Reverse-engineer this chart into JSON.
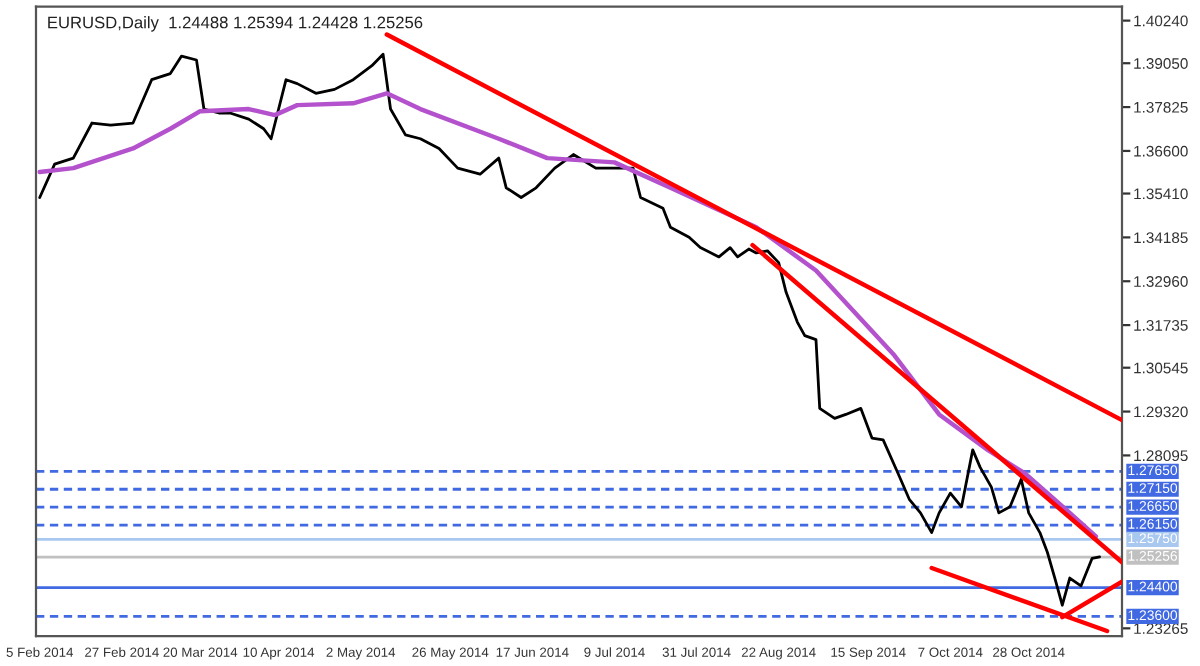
{
  "chart_data": {
    "type": "line",
    "title": "EURUSD,Daily  1.24488 1.25394 1.24428 1.25256",
    "series": [
      {
        "color": "#000000",
        "x": [
          "2014-02-05",
          "2014-02-09",
          "2014-02-14",
          "2014-02-19",
          "2014-02-24",
          "2014-03-02",
          "2014-03-07",
          "2014-03-12",
          "2014-03-15",
          "2014-03-19",
          "2014-03-21",
          "2014-03-25",
          "2014-03-28",
          "2014-04-02",
          "2014-04-06",
          "2014-04-08",
          "2014-04-12",
          "2014-04-15",
          "2014-04-20",
          "2014-04-25",
          "2014-04-30",
          "2014-05-05",
          "2014-05-08",
          "2014-05-10",
          "2014-05-14",
          "2014-05-18",
          "2014-05-23",
          "2014-05-28",
          "2014-06-03",
          "2014-06-08",
          "2014-06-10",
          "2014-06-14",
          "2014-06-18",
          "2014-06-23",
          "2014-06-28",
          "2014-07-04",
          "2014-07-09",
          "2014-07-14",
          "2014-07-16",
          "2014-07-22",
          "2014-07-24",
          "2014-07-29",
          "2014-08-01",
          "2014-08-06",
          "2014-08-09",
          "2014-08-11",
          "2014-08-14",
          "2014-08-16",
          "2014-08-19",
          "2014-08-22",
          "2014-08-24",
          "2014-08-27",
          "2014-08-29",
          "2014-09-01",
          "2014-09-02",
          "2014-09-06",
          "2014-09-09",
          "2014-09-13",
          "2014-09-16",
          "2014-09-19",
          "2014-09-23",
          "2014-09-26",
          "2014-09-29",
          "2014-10-02",
          "2014-10-04",
          "2014-10-07",
          "2014-10-10",
          "2014-10-13",
          "2014-10-15",
          "2014-10-18",
          "2014-10-20",
          "2014-10-23",
          "2014-10-26",
          "2014-10-28",
          "2014-10-31",
          "2014-11-02",
          "2014-11-04",
          "2014-11-06",
          "2014-11-08",
          "2014-11-11",
          "2014-11-14",
          "2014-11-16"
        ],
        "values": [
          1.353,
          1.3623,
          1.364,
          1.3738,
          1.3732,
          1.3738,
          1.3859,
          1.3876,
          1.3925,
          1.3914,
          1.3777,
          1.3766,
          1.3766,
          1.3749,
          1.3722,
          1.3694,
          1.3859,
          1.3848,
          1.3821,
          1.3832,
          1.3859,
          1.3898,
          1.393,
          1.3777,
          1.3705,
          1.3694,
          1.3667,
          1.3612,
          1.3595,
          1.364,
          1.3557,
          1.353,
          1.3557,
          1.3612,
          1.365,
          1.3612,
          1.3612,
          1.3612,
          1.353,
          1.35,
          1.3447,
          1.3419,
          1.339,
          1.3364,
          1.339,
          1.3364,
          1.3386,
          1.3375,
          1.3381,
          1.3348,
          1.3265,
          1.3182,
          1.3144,
          1.3133,
          1.2941,
          1.2913,
          1.2924,
          1.2941,
          1.2858,
          1.2853,
          1.2759,
          1.2687,
          1.2649,
          1.2594,
          1.2649,
          1.2704,
          1.2666,
          1.2825,
          1.2776,
          1.2721,
          1.2649,
          1.2666,
          1.2743,
          1.2649,
          1.2594,
          1.2539,
          1.2467,
          1.2391,
          1.2467,
          1.2445,
          1.2522,
          1.2526
        ]
      },
      {
        "color": "#b452cd",
        "x": [
          "2014-02-05",
          "2014-02-14",
          "2014-03-02",
          "2014-03-12",
          "2014-03-20",
          "2014-04-02",
          "2014-04-09",
          "2014-04-15",
          "2014-04-30",
          "2014-05-09",
          "2014-05-18",
          "2014-06-08",
          "2014-06-21",
          "2014-07-09",
          "2014-07-24",
          "2014-08-16",
          "2014-09-01",
          "2014-09-22",
          "2014-10-04",
          "2014-10-17",
          "2014-10-27",
          "2014-11-08",
          "2014-11-15"
        ],
        "values": [
          1.3601,
          1.3612,
          1.3667,
          1.3722,
          1.3771,
          1.3777,
          1.376,
          1.3788,
          1.3793,
          1.3821,
          1.3777,
          1.3694,
          1.364,
          1.3628,
          1.3557,
          1.3447,
          1.3326,
          1.3089,
          1.2924,
          1.2825,
          1.2759,
          1.2649,
          1.2583
        ]
      },
      {
        "color": "#ff0000",
        "x": [
          "2014-05-09",
          "2014-11-22"
        ],
        "values": [
          1.3985,
          1.2908
        ]
      },
      {
        "color": "#ff0000",
        "x": [
          "2014-08-15",
          "2014-11-22"
        ],
        "values": [
          1.3397,
          1.2511
        ]
      },
      {
        "color": "#ff0000",
        "x": [
          "2014-10-02",
          "2014-11-18"
        ],
        "values": [
          1.2495,
          1.2319
        ]
      },
      {
        "color": "#ff0000",
        "x": [
          "2014-11-06",
          "2014-11-22"
        ],
        "values": [
          1.2358,
          1.2457
        ]
      }
    ],
    "ref_lines": [
      {
        "axis": "y",
        "value": 1.2765,
        "label": "1.27650",
        "color": "#4169e1",
        "line_style": "dashed"
      },
      {
        "axis": "y",
        "value": 1.2715,
        "label": "1.27150",
        "color": "#4169e1",
        "line_style": "dashed"
      },
      {
        "axis": "y",
        "value": 1.2665,
        "label": "1.26650",
        "color": "#4169e1",
        "line_style": "dashed"
      },
      {
        "axis": "y",
        "value": 1.2615,
        "label": "1.26150",
        "color": "#4169e1",
        "line_style": "dashed"
      },
      {
        "axis": "y",
        "value": 1.2575,
        "label": "1.25750",
        "color": "#a8c8f0",
        "line_style": "solid"
      },
      {
        "axis": "y",
        "value": 1.25256,
        "label": "1.25256",
        "color": "#c0c0c0",
        "line_style": "solid"
      },
      {
        "axis": "y",
        "value": 1.244,
        "label": "1.24400",
        "color": "#4169e1",
        "line_style": "solid"
      },
      {
        "axis": "y",
        "value": 1.236,
        "label": "1.23600",
        "color": "#4169e1",
        "line_style": "dashed"
      }
    ],
    "xlim": [
      "2014-02-04",
      "2014-11-22"
    ],
    "xticks": [
      {
        "value": "2014-02-05",
        "label": "5 Feb 2014"
      },
      {
        "value": "2014-02-27",
        "label": "27 Feb 2014"
      },
      {
        "value": "2014-03-20",
        "label": "20 Mar 2014"
      },
      {
        "value": "2014-04-10",
        "label": "10 Apr 2014"
      },
      {
        "value": "2014-05-02",
        "label": "2 May 2014"
      },
      {
        "value": "2014-05-26",
        "label": "26 May 2014"
      },
      {
        "value": "2014-06-17",
        "label": "17 Jun 2014"
      },
      {
        "value": "2014-07-09",
        "label": "9 Jul 2014"
      },
      {
        "value": "2014-07-31",
        "label": "31 Jul 2014"
      },
      {
        "value": "2014-08-22",
        "label": "22 Aug 2014"
      },
      {
        "value": "2014-09-15",
        "label": "15 Sep 2014"
      },
      {
        "value": "2014-10-07",
        "label": "7 Oct 2014"
      },
      {
        "value": "2014-10-28",
        "label": "28 Oct 2014"
      }
    ],
    "ylim": [
      1.2305,
      1.4063
    ],
    "yticks": [
      {
        "value": 1.4024,
        "label": "1.40240"
      },
      {
        "value": 1.3905,
        "label": "1.39050"
      },
      {
        "value": 1.37825,
        "label": "1.37825"
      },
      {
        "value": 1.366,
        "label": "1.36600"
      },
      {
        "value": 1.3541,
        "label": "1.35410"
      },
      {
        "value": 1.34185,
        "label": "1.34185"
      },
      {
        "value": 1.3296,
        "label": "1.32960"
      },
      {
        "value": 1.31735,
        "label": "1.31735"
      },
      {
        "value": 1.30545,
        "label": "1.30545"
      },
      {
        "value": 1.2932,
        "label": "1.29320"
      },
      {
        "value": 1.28095,
        "label": "1.28095"
      },
      {
        "value": 1.23265,
        "label": "1.23265"
      }
    ],
    "grid": false,
    "legend": false
  }
}
